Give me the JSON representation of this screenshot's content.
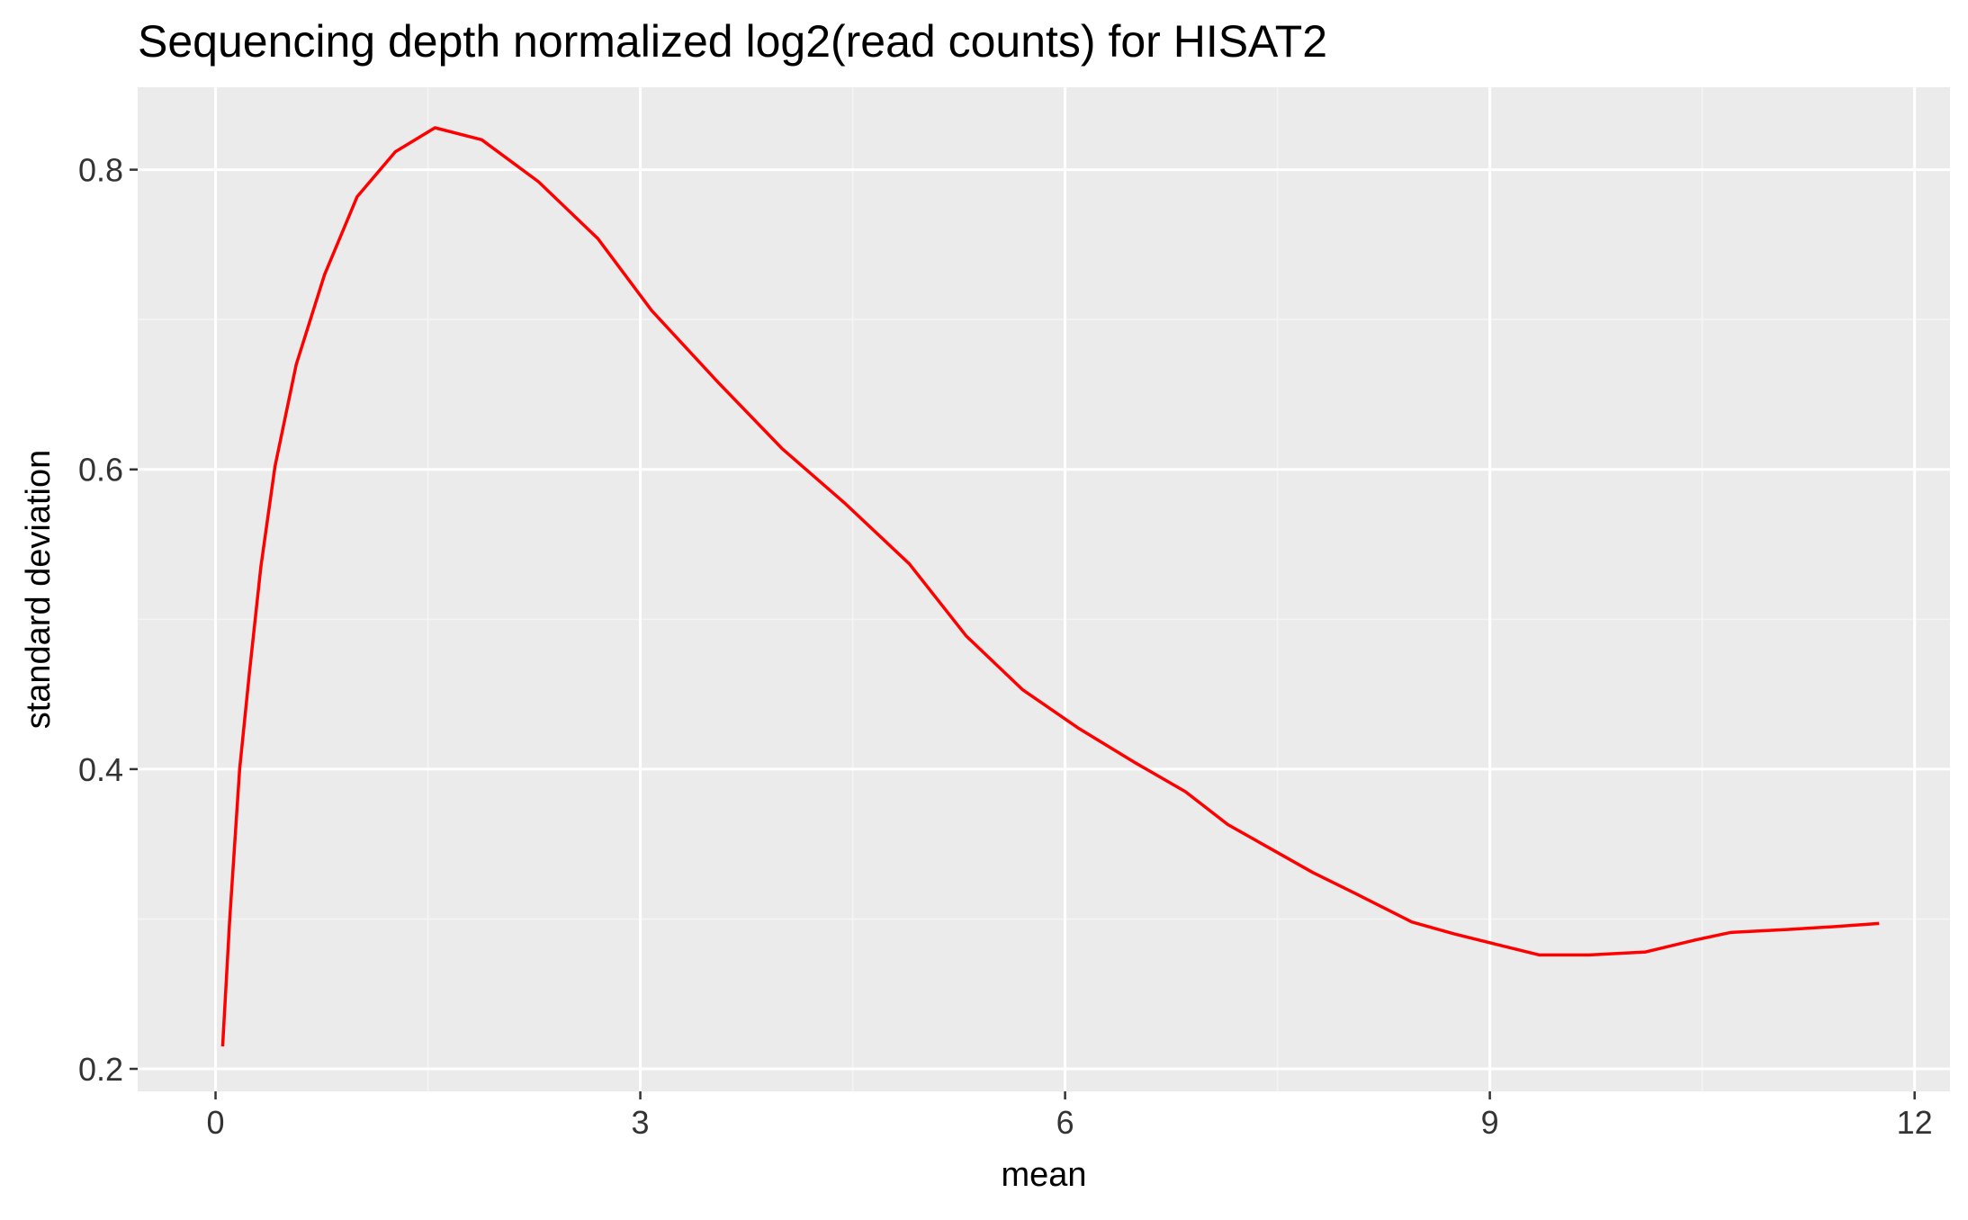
{
  "chart_data": {
    "type": "line",
    "title": "Sequencing depth normalized log2(read counts) for HISAT2",
    "xlabel": "mean",
    "ylabel": "standard deviation",
    "xlim": [
      -0.55,
      12.25
    ],
    "ylim": [
      0.185,
      0.855
    ],
    "x_ticks": [
      0,
      3,
      6,
      9,
      12
    ],
    "x_tick_labels": [
      "0",
      "3",
      "6",
      "9",
      "12"
    ],
    "y_ticks": [
      0.2,
      0.4,
      0.6,
      0.8
    ],
    "y_tick_labels": [
      "0.2",
      "0.4",
      "0.6",
      "0.8"
    ],
    "grid": true,
    "legend": "none",
    "colors": {
      "panel_background": "#EBEBEB",
      "grid_major": "#FFFFFF",
      "grid_minor": "#F5F5F5",
      "line": "#FF0000",
      "axis_text": "#333333",
      "text": "#000000"
    },
    "series": [
      {
        "x": [
          0.05,
          0.1,
          0.17,
          0.24,
          0.32,
          0.42,
          0.57,
          0.77,
          1.0,
          1.27,
          1.55,
          1.88,
          2.28,
          2.7,
          3.08,
          3.55,
          4.0,
          4.45,
          4.9,
          5.3,
          5.7,
          6.1,
          6.5,
          6.85,
          7.15,
          7.45,
          7.75,
          8.05,
          8.45,
          8.75,
          9.05,
          9.35,
          9.7,
          10.1,
          10.45,
          10.7,
          11.1,
          11.45,
          11.75
        ],
        "y": [
          0.215,
          0.3,
          0.4,
          0.465,
          0.535,
          0.602,
          0.67,
          0.73,
          0.782,
          0.812,
          0.828,
          0.82,
          0.792,
          0.754,
          0.706,
          0.658,
          0.614,
          0.577,
          0.537,
          0.489,
          0.453,
          0.427,
          0.404,
          0.385,
          0.363,
          0.347,
          0.331,
          0.317,
          0.298,
          0.29,
          0.283,
          0.276,
          0.276,
          0.278,
          0.286,
          0.291,
          0.293,
          0.295,
          0.297
        ]
      }
    ]
  }
}
